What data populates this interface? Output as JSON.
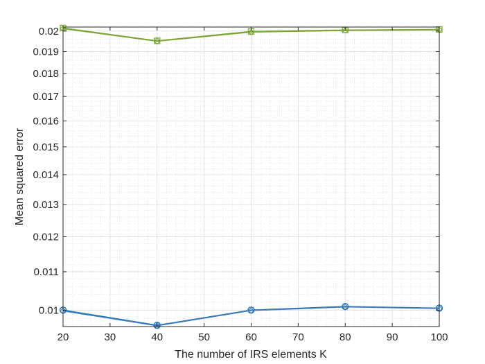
{
  "chart_data": {
    "type": "line",
    "title": "",
    "xlabel": "The number of IRS elements K",
    "ylabel": "Mean squared error",
    "xlim": [
      20,
      100
    ],
    "ylim": [
      0.0096,
      0.0202
    ],
    "yscale": "log",
    "grid": true,
    "minor_grid": true,
    "x_ticks": [
      20,
      30,
      40,
      50,
      60,
      70,
      80,
      90,
      100
    ],
    "y_ticks": [
      0.01,
      0.011,
      0.012,
      0.013,
      0.014,
      0.015,
      0.016,
      0.017,
      0.018,
      0.019,
      0.02
    ],
    "x_tick_labels": [
      "20",
      "30",
      "40",
      "50",
      "60",
      "70",
      "80",
      "90",
      "100"
    ],
    "y_tick_labels": [
      "0.01",
      "0.011",
      "0.012",
      "0.013",
      "0.014",
      "0.015",
      "0.016",
      "0.017",
      "0.018",
      "0.019",
      "0.02"
    ],
    "x": [
      20,
      40,
      60,
      80,
      100
    ],
    "series": [
      {
        "color": "#77ac30",
        "marker": "square",
        "values": [
          0.02015,
          0.01952,
          0.01998,
          0.02005,
          0.02008
        ]
      },
      {
        "color": "#7fa33a",
        "marker": "diamond",
        "values": [
          0.02012,
          0.0195,
          0.01995,
          0.02003,
          0.02006
        ]
      },
      {
        "color": "#0072bd",
        "marker": "circle",
        "values": [
          0.01,
          0.00963,
          0.01,
          0.01009,
          0.01005
        ]
      },
      {
        "color": "#4d7bb5",
        "marker": "diamond",
        "values": [
          0.00998,
          0.00962,
          0.00999,
          0.01008,
          0.01004
        ]
      }
    ]
  }
}
